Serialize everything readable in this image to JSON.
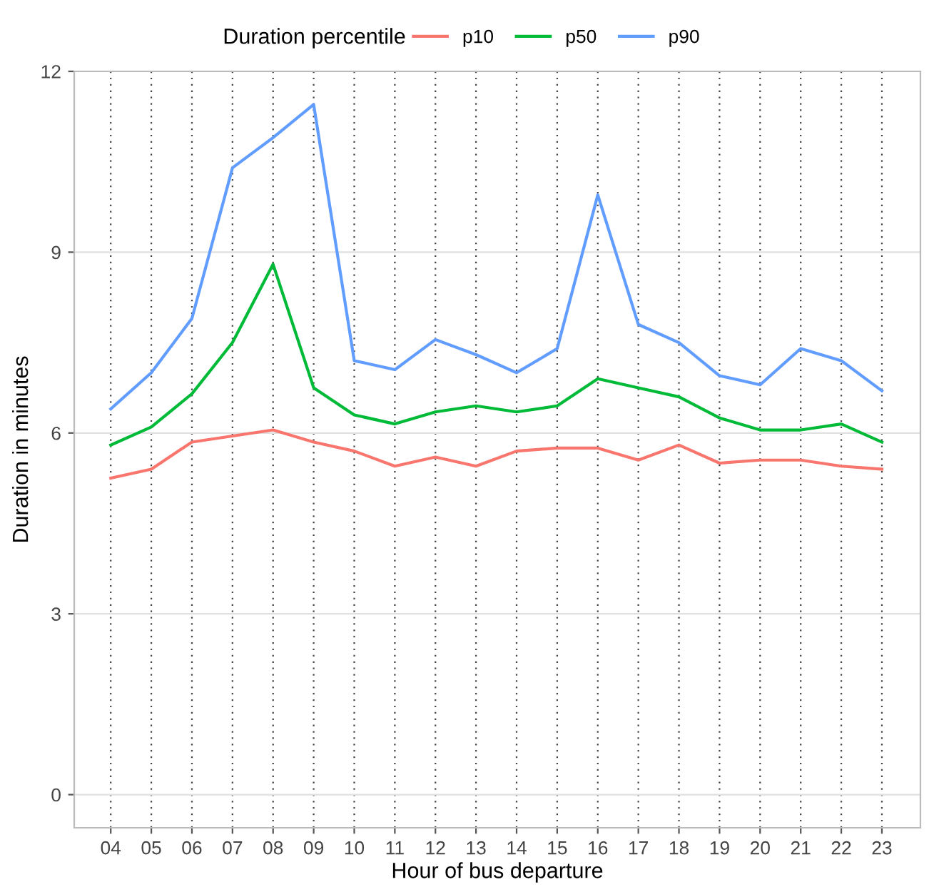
{
  "chart_data": {
    "type": "line",
    "xlabel": "Hour of bus departure",
    "ylabel": "Duration in minutes",
    "legend_title": "Duration percentile",
    "categories": [
      "04",
      "05",
      "06",
      "07",
      "08",
      "09",
      "10",
      "11",
      "12",
      "13",
      "14",
      "15",
      "16",
      "17",
      "18",
      "19",
      "20",
      "21",
      "22",
      "23"
    ],
    "series": [
      {
        "name": "p10",
        "color": "#f8766d",
        "values": [
          5.25,
          5.4,
          5.85,
          5.95,
          6.05,
          5.85,
          5.7,
          5.45,
          5.6,
          5.45,
          5.7,
          5.75,
          5.75,
          5.55,
          5.8,
          5.5,
          5.55,
          5.55,
          5.45,
          5.4
        ]
      },
      {
        "name": "p50",
        "color": "#00ba38",
        "values": [
          5.8,
          6.1,
          6.65,
          7.5,
          8.8,
          6.75,
          6.3,
          6.15,
          6.35,
          6.45,
          6.35,
          6.45,
          6.9,
          6.75,
          6.6,
          6.25,
          6.05,
          6.05,
          6.15,
          5.85
        ]
      },
      {
        "name": "p90",
        "color": "#619cff",
        "values": [
          6.4,
          7.0,
          7.9,
          10.4,
          10.9,
          11.45,
          7.2,
          7.05,
          7.55,
          7.3,
          7.0,
          7.4,
          9.95,
          7.8,
          7.5,
          6.95,
          6.8,
          7.4,
          7.2,
          6.7
        ]
      }
    ],
    "ylim": [
      -0.55,
      12
    ],
    "yticks": [
      0,
      3,
      6,
      9,
      12
    ],
    "grid": true,
    "legend": "top",
    "marker": "none",
    "line_style": "solid"
  }
}
